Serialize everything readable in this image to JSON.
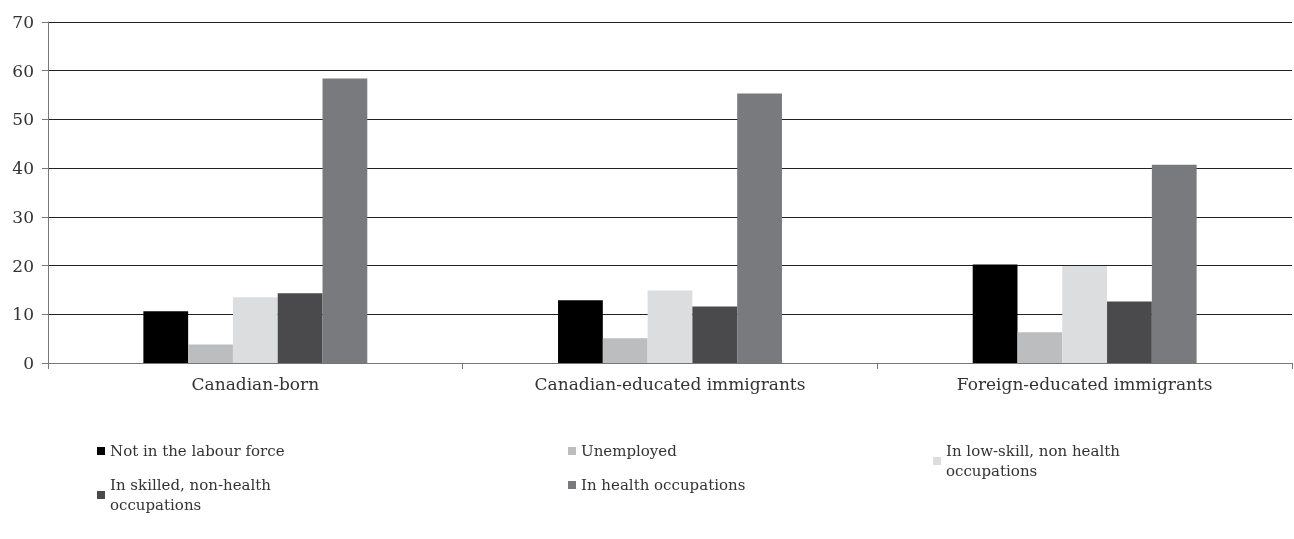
{
  "chart_data": {
    "type": "bar",
    "categories": [
      "Canadian-born",
      "Canadian-educated immigrants",
      "Foreign-educated immigrants"
    ],
    "series": [
      {
        "name": "Not in the labour force",
        "color": "#000000",
        "values": [
          10.6,
          12.9,
          20.2
        ]
      },
      {
        "name": "Unemployed",
        "color": "#bcbdbf",
        "values": [
          3.8,
          5.1,
          6.3
        ]
      },
      {
        "name": "In low-skill, non health occupations",
        "color": "#dcdddf",
        "values": [
          13.5,
          14.9,
          19.9
        ]
      },
      {
        "name": "In skilled, non-health occupations",
        "color": "#4a4a4c",
        "values": [
          14.3,
          11.6,
          12.6
        ]
      },
      {
        "name": "In health occupations",
        "color": "#797a7e",
        "values": [
          58.4,
          55.3,
          40.7
        ]
      }
    ],
    "ylim": [
      0,
      70
    ],
    "yticks": [
      0,
      10,
      20,
      30,
      40,
      50,
      60,
      70
    ],
    "grid": "y",
    "legend": "bottom"
  }
}
